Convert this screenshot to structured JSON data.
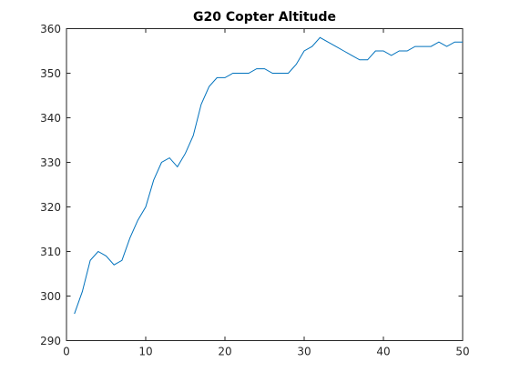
{
  "chart_data": {
    "type": "line",
    "title": "G20 Copter Altitude",
    "xlabel": "",
    "ylabel": "",
    "xlim": [
      0,
      50
    ],
    "ylim": [
      290,
      360
    ],
    "xticks": [
      0,
      10,
      20,
      30,
      40,
      50
    ],
    "yticks": [
      290,
      300,
      310,
      320,
      330,
      340,
      350,
      360
    ],
    "grid": false,
    "series": [
      {
        "color": "#0072BD",
        "x": [
          1,
          2,
          3,
          4,
          5,
          6,
          7,
          8,
          9,
          10,
          11,
          12,
          13,
          14,
          15,
          16,
          17,
          18,
          19,
          20,
          21,
          22,
          23,
          24,
          25,
          26,
          27,
          28,
          29,
          30,
          31,
          32,
          33,
          34,
          35,
          36,
          37,
          38,
          39,
          40,
          41,
          42,
          43,
          44,
          45,
          46,
          47,
          48,
          49,
          50
        ],
        "y": [
          296,
          301,
          308,
          310,
          309,
          307,
          308,
          313,
          317,
          320,
          326,
          330,
          331,
          329,
          332,
          336,
          343,
          347,
          349,
          349,
          350,
          350,
          350,
          351,
          351,
          350,
          350,
          350,
          352,
          355,
          356,
          358,
          357,
          356,
          355,
          354,
          353,
          353,
          355,
          355,
          354,
          355,
          355,
          356,
          356,
          356,
          357,
          356,
          357,
          357
        ]
      }
    ]
  }
}
